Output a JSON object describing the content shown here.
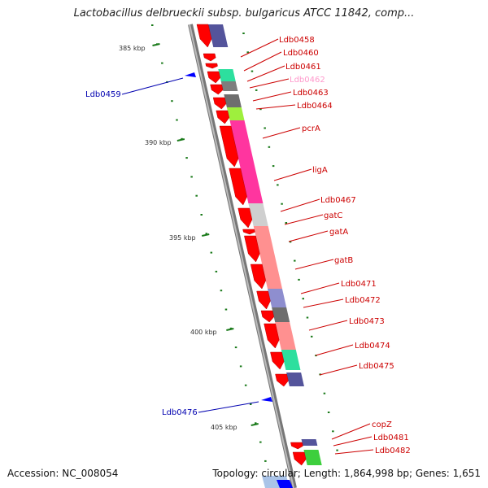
{
  "title": "Lactobacillus delbrueckii subsp. bulgaricus ATCC 11842, comp...",
  "footer": {
    "accession": "Accession: NC_008054",
    "stats": "Topology: circular; Length: 1,864,998 bp; Genes: 1,651"
  },
  "ticks": [
    "385 kbp",
    "390 kbp",
    "395 kbp",
    "400 kbp",
    "405 kbp"
  ],
  "colors": {
    "forward_arrow": "#ff0000",
    "reverse_arrow": "#0000ff",
    "backbone": "#8c8c8c",
    "forward_label": "#cc0000",
    "reverse_label": "#0000b0",
    "faded_label": "#ff99cc",
    "tick": "#1a7a1a"
  },
  "forward_labels": [
    "Ldb0458",
    "Ldb0460",
    "Ldb0461",
    "Ldb0462",
    "Ldb0463",
    "Ldb0464",
    "pcrA",
    "ligA",
    "Ldb0467",
    "gatC",
    "gatA",
    "gatB",
    "Ldb0471",
    "Ldb0472",
    "Ldb0473",
    "Ldb0474",
    "Ldb0475",
    "copZ",
    "Ldb0481",
    "Ldb0482"
  ],
  "reverse_labels": [
    "Ldb0459",
    "Ldb0476"
  ]
}
